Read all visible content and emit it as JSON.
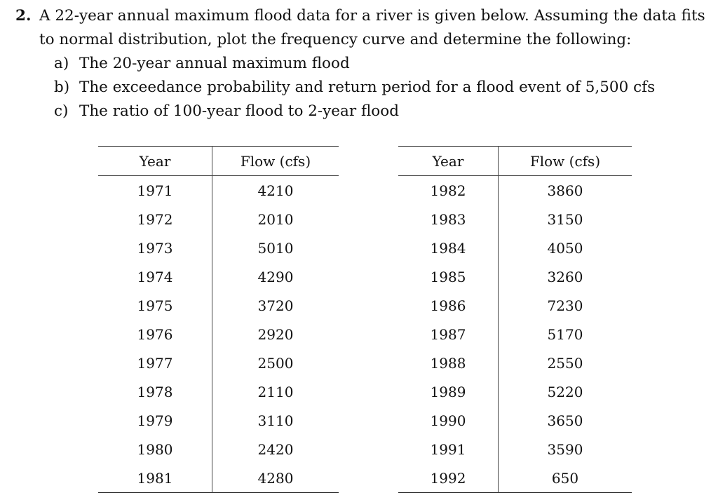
{
  "question": {
    "number": "2.",
    "line1": "A 22-year annual maximum flood data for a river is given below.  Assuming the data fits",
    "line2": "to normal distribution, plot the frequency curve and determine the following:",
    "parts": [
      {
        "letter": "a)",
        "text": "The 20-year annual maximum flood"
      },
      {
        "letter": "b)",
        "text": "The exceedance probability and return period for a flood event of 5,500 cfs"
      },
      {
        "letter": "c)",
        "text": "The ratio of 100-year flood to 2-year flood"
      }
    ]
  },
  "tables": {
    "left": {
      "headers": {
        "year": "Year",
        "flow": "Flow (cfs)"
      },
      "rows": [
        {
          "year": "1971",
          "flow": "4210"
        },
        {
          "year": "1972",
          "flow": "2010"
        },
        {
          "year": "1973",
          "flow": "5010"
        },
        {
          "year": "1974",
          "flow": "4290"
        },
        {
          "year": "1975",
          "flow": "3720"
        },
        {
          "year": "1976",
          "flow": "2920"
        },
        {
          "year": "1977",
          "flow": "2500"
        },
        {
          "year": "1978",
          "flow": "2110"
        },
        {
          "year": "1979",
          "flow": "3110"
        },
        {
          "year": "1980",
          "flow": "2420"
        },
        {
          "year": "1981",
          "flow": "4280"
        }
      ]
    },
    "right": {
      "headers": {
        "year": "Year",
        "flow": "Flow (cfs)"
      },
      "rows": [
        {
          "year": "1982",
          "flow": "3860"
        },
        {
          "year": "1983",
          "flow": "3150"
        },
        {
          "year": "1984",
          "flow": "4050"
        },
        {
          "year": "1985",
          "flow": "3260"
        },
        {
          "year": "1986",
          "flow": "7230"
        },
        {
          "year": "1987",
          "flow": "5170"
        },
        {
          "year": "1988",
          "flow": "2550"
        },
        {
          "year": "1989",
          "flow": "5220"
        },
        {
          "year": "1990",
          "flow": "3650"
        },
        {
          "year": "1991",
          "flow": "3590"
        },
        {
          "year": "1992",
          "flow": "650"
        }
      ]
    }
  }
}
